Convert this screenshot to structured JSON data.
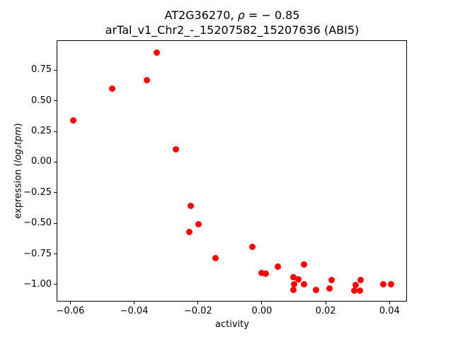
{
  "title": {
    "line1_prefix": "AT2G36270, ",
    "line1_rho": "ρ",
    "line1_suffix": " = − 0.85",
    "line2": "arTal_v1_Chr2_-_15207582_15207636 (ABI5)"
  },
  "axes": {
    "xlabel": "activity",
    "ylabel_prefix": "expression (",
    "ylabel_math": "log₂tpm",
    "ylabel_suffix": ")",
    "x_tick_labels": [
      "−0.06",
      "−0.04",
      "−0.02",
      "0.00",
      "0.02",
      "0.04"
    ],
    "y_tick_labels": [
      "0.75",
      "0.50",
      "0.25",
      "0.00",
      "−0.25",
      "−0.50",
      "−0.75",
      "−1.00"
    ]
  },
  "chart_data": {
    "type": "scatter",
    "title": "AT2G36270, ρ = − 0.85\narTal_v1_Chr2_-_15207582_15207636 (ABI5)",
    "xlabel": "activity",
    "ylabel": "expression (log₂tpm)",
    "legend": "none",
    "grid": false,
    "marker_color": "#ff0000",
    "xlim": [
      -0.0643,
      0.0457
    ],
    "ylim": [
      -1.14,
      0.99
    ],
    "x_tick_values": [
      -0.06,
      -0.04,
      -0.02,
      0.0,
      0.02,
      0.04
    ],
    "y_tick_values": [
      0.75,
      0.5,
      0.25,
      0.0,
      -0.25,
      -0.5,
      -0.75,
      -1.0
    ],
    "points": [
      {
        "x": -0.059,
        "y": 0.34
      },
      {
        "x": -0.047,
        "y": 0.6
      },
      {
        "x": -0.036,
        "y": 0.665
      },
      {
        "x": -0.033,
        "y": 0.89
      },
      {
        "x": -0.027,
        "y": 0.105
      },
      {
        "x": -0.0223,
        "y": -0.36
      },
      {
        "x": -0.0228,
        "y": -0.57
      },
      {
        "x": -0.0199,
        "y": -0.51
      },
      {
        "x": -0.0145,
        "y": -0.785
      },
      {
        "x": -0.003,
        "y": -0.69
      },
      {
        "x": 0.0,
        "y": -0.905
      },
      {
        "x": 0.0013,
        "y": -0.913
      },
      {
        "x": 0.005,
        "y": -0.854
      },
      {
        "x": 0.0099,
        "y": -0.941
      },
      {
        "x": 0.0114,
        "y": -0.957
      },
      {
        "x": 0.01,
        "y": -0.999
      },
      {
        "x": 0.0099,
        "y": -1.041
      },
      {
        "x": 0.0131,
        "y": -0.995
      },
      {
        "x": 0.0133,
        "y": -0.834
      },
      {
        "x": 0.017,
        "y": -1.041
      },
      {
        "x": 0.0211,
        "y": -1.033
      },
      {
        "x": 0.0218,
        "y": -0.964
      },
      {
        "x": 0.029,
        "y": -1.047
      },
      {
        "x": 0.0294,
        "y": -1.003
      },
      {
        "x": 0.0307,
        "y": -1.047
      },
      {
        "x": 0.0309,
        "y": -0.961
      },
      {
        "x": 0.0381,
        "y": -0.995
      },
      {
        "x": 0.0405,
        "y": -0.999
      }
    ]
  }
}
